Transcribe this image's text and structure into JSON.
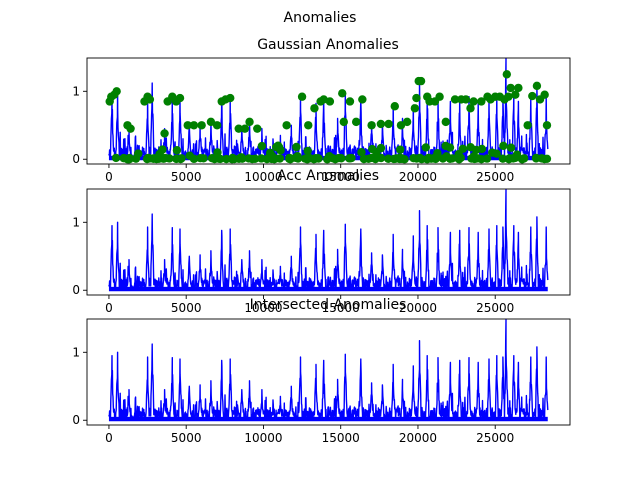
{
  "suptitle": "Anomalies",
  "colors": {
    "signal": "#0000ff",
    "anomaly": "#008000",
    "axis": "#000000",
    "background": "#ffffff"
  },
  "chart_data": [
    {
      "type": "line",
      "title": "Gaussian Anomalies",
      "xlim": [
        -1420,
        29840
      ],
      "ylim": [
        -0.07,
        1.49
      ],
      "xticks": [
        0,
        5000,
        10000,
        15000,
        20000,
        25000
      ],
      "xtick_labels": [
        "0",
        "5000",
        "10000",
        "15000",
        "20000",
        "25000"
      ],
      "yticks": [
        0,
        1
      ],
      "ytick_labels": [
        "0",
        "1"
      ],
      "series": [
        {
          "name": "signal",
          "style": "line",
          "color": "#0000ff",
          "n_points": 28400,
          "x_range": [
            0,
            28400
          ],
          "y_range": [
            0,
            1.48
          ]
        },
        {
          "name": "anomalies",
          "style": "markers",
          "color": "#008000"
        }
      ],
      "peaks": [
        [
          200,
          0.95
        ],
        [
          560,
          1.0
        ],
        [
          1300,
          0.45
        ],
        [
          2500,
          0.93
        ],
        [
          2800,
          1.12
        ],
        [
          3600,
          0.45
        ],
        [
          4100,
          0.92
        ],
        [
          4600,
          0.9
        ],
        [
          5200,
          0.5
        ],
        [
          5900,
          0.52
        ],
        [
          6600,
          0.58
        ],
        [
          7300,
          0.88
        ],
        [
          7850,
          0.9
        ],
        [
          8600,
          0.45
        ],
        [
          9100,
          0.58
        ],
        [
          9900,
          0.45
        ],
        [
          11100,
          0.35
        ],
        [
          11800,
          0.5
        ],
        [
          12400,
          0.93
        ],
        [
          13400,
          0.82
        ],
        [
          13900,
          0.88
        ],
        [
          14800,
          0.6
        ],
        [
          15300,
          0.97
        ],
        [
          16300,
          0.9
        ],
        [
          17000,
          0.55
        ],
        [
          17700,
          0.52
        ],
        [
          18400,
          0.82
        ],
        [
          19000,
          0.6
        ],
        [
          19700,
          0.8
        ],
        [
          20100,
          1.17
        ],
        [
          20600,
          0.95
        ],
        [
          21300,
          0.92
        ],
        [
          22100,
          0.85
        ],
        [
          22700,
          0.88
        ],
        [
          23300,
          0.92
        ],
        [
          23900,
          0.85
        ],
        [
          24600,
          0.9
        ],
        [
          25100,
          0.95
        ],
        [
          25500,
          0.93
        ],
        [
          25700,
          1.48
        ],
        [
          26200,
          0.95
        ],
        [
          26500,
          0.85
        ],
        [
          27300,
          0.93
        ],
        [
          27700,
          1.08
        ],
        [
          28300,
          0.93
        ]
      ],
      "anomaly_points": [
        [
          50,
          0.85
        ],
        [
          150,
          0.92
        ],
        [
          350,
          0.95
        ],
        [
          500,
          1.0
        ],
        [
          1200,
          0.5
        ],
        [
          1400,
          0.45
        ],
        [
          2300,
          0.85
        ],
        [
          2500,
          0.92
        ],
        [
          2650,
          0.88
        ],
        [
          3600,
          0.38
        ],
        [
          3800,
          0.85
        ],
        [
          4100,
          0.92
        ],
        [
          4350,
          0.85
        ],
        [
          4600,
          0.9
        ],
        [
          5100,
          0.5
        ],
        [
          5500,
          0.5
        ],
        [
          6000,
          0.5
        ],
        [
          6600,
          0.55
        ],
        [
          7000,
          0.5
        ],
        [
          7300,
          0.85
        ],
        [
          7550,
          0.88
        ],
        [
          7850,
          0.9
        ],
        [
          8400,
          0.45
        ],
        [
          8800,
          0.45
        ],
        [
          9100,
          0.55
        ],
        [
          9600,
          0.45
        ],
        [
          11500,
          0.5
        ],
        [
          12500,
          0.92
        ],
        [
          12900,
          0.5
        ],
        [
          13300,
          0.75
        ],
        [
          13700,
          0.85
        ],
        [
          13900,
          0.88
        ],
        [
          14300,
          0.85
        ],
        [
          15100,
          0.97
        ],
        [
          15200,
          0.55
        ],
        [
          15600,
          0.85
        ],
        [
          16000,
          0.55
        ],
        [
          16400,
          0.88
        ],
        [
          17000,
          0.5
        ],
        [
          17600,
          0.52
        ],
        [
          18100,
          0.52
        ],
        [
          18500,
          0.78
        ],
        [
          18900,
          0.5
        ],
        [
          19300,
          0.55
        ],
        [
          19800,
          0.75
        ],
        [
          19900,
          0.9
        ],
        [
          20050,
          1.15
        ],
        [
          20200,
          1.15
        ],
        [
          20600,
          0.92
        ],
        [
          20750,
          0.85
        ],
        [
          21100,
          0.85
        ],
        [
          21400,
          0.92
        ],
        [
          21800,
          0.55
        ],
        [
          22400,
          0.88
        ],
        [
          22800,
          0.88
        ],
        [
          23100,
          0.88
        ],
        [
          23400,
          0.75
        ],
        [
          23600,
          0.85
        ],
        [
          24100,
          0.85
        ],
        [
          24500,
          0.92
        ],
        [
          24700,
          0.88
        ],
        [
          25000,
          0.92
        ],
        [
          25300,
          0.92
        ],
        [
          25600,
          0.88
        ],
        [
          25750,
          1.25
        ],
        [
          25850,
          0.92
        ],
        [
          26000,
          1.05
        ],
        [
          26300,
          0.95
        ],
        [
          26500,
          1.05
        ],
        [
          27100,
          0.5
        ],
        [
          27400,
          0.93
        ],
        [
          27700,
          1.08
        ],
        [
          27900,
          0.88
        ],
        [
          28200,
          0.95
        ],
        [
          28350,
          0.5
        ]
      ]
    },
    {
      "type": "line",
      "title": "Acc Anomalies",
      "xlim": [
        -1420,
        29840
      ],
      "ylim": [
        -0.07,
        1.49
      ],
      "xticks": [
        0,
        5000,
        10000,
        15000,
        20000,
        25000
      ],
      "xtick_labels": [
        "0",
        "5000",
        "10000",
        "15000",
        "20000",
        "25000"
      ],
      "yticks": [
        0,
        1
      ],
      "ytick_labels": [
        "0",
        "1"
      ],
      "series": [
        {
          "name": "signal",
          "style": "line",
          "color": "#0000ff",
          "n_points": 28400,
          "x_range": [
            0,
            28400
          ],
          "y_range": [
            0,
            1.48
          ]
        }
      ]
    },
    {
      "type": "line",
      "title": "Intersected Anomalies",
      "xlim": [
        -1420,
        29840
      ],
      "ylim": [
        -0.07,
        1.49
      ],
      "xticks": [
        0,
        5000,
        10000,
        15000,
        20000,
        25000
      ],
      "xtick_labels": [
        "0",
        "5000",
        "10000",
        "15000",
        "20000",
        "25000"
      ],
      "yticks": [
        0,
        1
      ],
      "ytick_labels": [
        "0",
        "1"
      ],
      "series": [
        {
          "name": "signal",
          "style": "line",
          "color": "#0000ff",
          "n_points": 28400,
          "x_range": [
            0,
            28400
          ],
          "y_range": [
            0,
            1.48
          ]
        }
      ]
    }
  ]
}
